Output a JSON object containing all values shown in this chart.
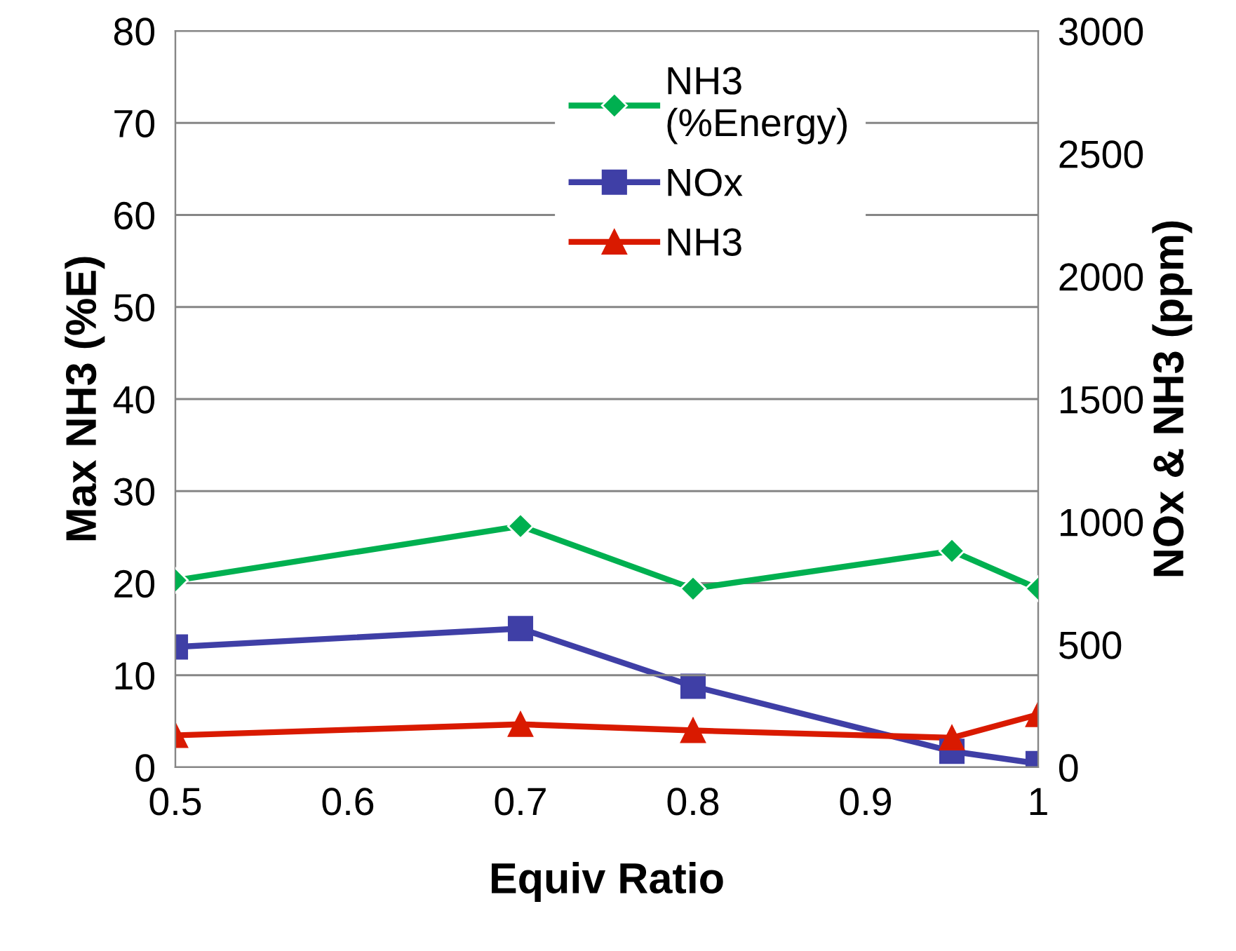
{
  "chart_data": {
    "type": "line",
    "xlabel": "Equiv Ratio",
    "ylabel": "Max NH3 (%E)",
    "y2label": "NOx & NH3 (ppm)",
    "x": [
      0.5,
      0.7,
      0.8,
      0.95,
      1
    ],
    "series": [
      {
        "name": "NH3\n(%Energy)",
        "color": "#00b050",
        "values": [
          20.3,
          26.2,
          19.4,
          23.5,
          19.4
        ],
        "marker": "diamond"
      },
      {
        "name": "NOx",
        "color": "#3f3fa6",
        "values": [
          490,
          565,
          330,
          65,
          15
        ],
        "axis": "y2",
        "marker": "square"
      },
      {
        "name": "NH3",
        "color": "#d91a00",
        "values": [
          130,
          175,
          150,
          120,
          215
        ],
        "axis": "y2",
        "marker": "triangle"
      }
    ],
    "xlim": [
      0.5,
      1
    ],
    "xticks": [
      0.5,
      0.6,
      0.7,
      0.8,
      0.9,
      1
    ],
    "ylim": [
      0,
      80
    ],
    "yticks": [
      0,
      10,
      20,
      30,
      40,
      50,
      60,
      70,
      80
    ],
    "y2lim": [
      0,
      3000
    ],
    "y2ticks": [
      0,
      500,
      1000,
      1500,
      2000,
      2500,
      3000
    ],
    "grid": "y",
    "legend": "top",
    "line_style": "solid"
  }
}
